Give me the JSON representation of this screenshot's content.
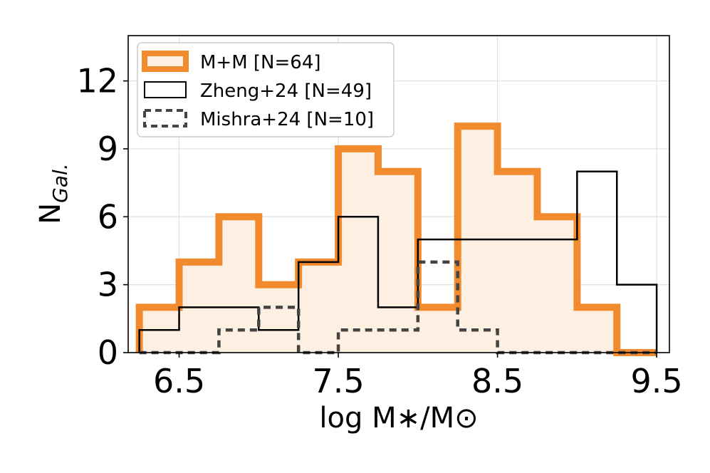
{
  "chart_data": {
    "type": "histogram",
    "title": "",
    "xlabel": "log M∗/M⊙",
    "ylabel": "N",
    "ylabel_sub": "Gal.",
    "xlim": [
      6.18,
      9.58
    ],
    "ylim": [
      0,
      14
    ],
    "xticks": [
      6.5,
      7.5,
      8.5,
      9.5
    ],
    "xtick_labels": [
      "6.5",
      "7.5",
      "8.5",
      "9.5"
    ],
    "yticks": [
      0,
      3,
      6,
      9,
      12
    ],
    "ytick_labels": [
      "0",
      "3",
      "6",
      "9",
      "12"
    ],
    "grid": true,
    "legend_position": "top-left",
    "bin_edges": [
      6.25,
      6.5,
      6.75,
      7.0,
      7.25,
      7.5,
      7.75,
      8.0,
      8.25,
      8.5,
      8.75,
      9.0,
      9.25,
      9.5
    ],
    "series": [
      {
        "name": "M+M [N=64]",
        "style": "filled-thick",
        "color": "#f28a2e",
        "fill": "#fdf0e2",
        "values": [
          2,
          4,
          6,
          3,
          4,
          9,
          8,
          2,
          10,
          8,
          6,
          2,
          0
        ]
      },
      {
        "name": "Zheng+24 [N=49]",
        "style": "solid",
        "color": "#000000",
        "values": [
          1,
          2,
          2,
          1,
          4,
          6,
          2,
          5,
          5,
          5,
          5,
          8,
          3
        ]
      },
      {
        "name": "Mishra+24 [N=10]",
        "style": "dashed",
        "color": "#444444",
        "values": [
          0,
          0,
          1,
          2,
          0,
          1,
          1,
          4,
          1,
          0,
          0,
          0,
          0
        ]
      }
    ]
  }
}
